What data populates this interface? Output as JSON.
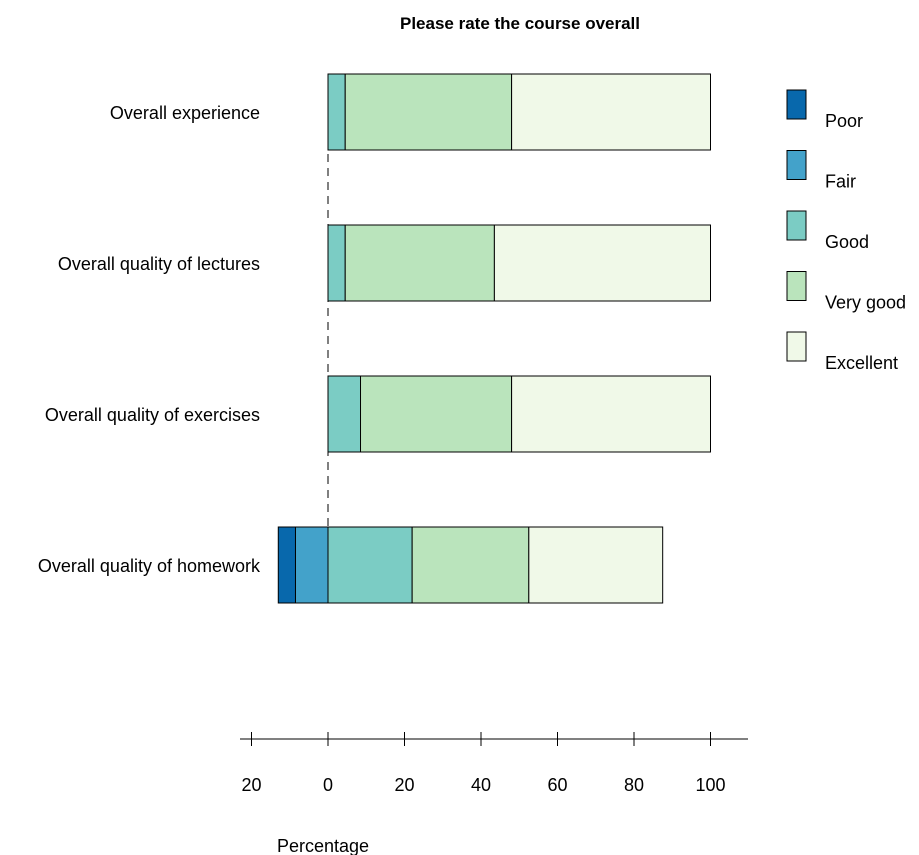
{
  "chart_data": {
    "type": "bar",
    "orientation": "horizontal",
    "stacked": "diverging",
    "title": "Please rate the course overall",
    "xlabel": "Percentage",
    "ylabel": "",
    "xlim": [
      -20,
      110
    ],
    "x_ticks": [
      -20,
      0,
      20,
      40,
      60,
      80,
      100
    ],
    "x_tick_labels": [
      "20",
      "0",
      "20",
      "40",
      "60",
      "80",
      "100"
    ],
    "categories": [
      "Overall experience",
      "Overall quality of lectures",
      "Overall quality of exercises",
      "Overall quality of homework"
    ],
    "series": [
      {
        "name": "Poor",
        "color": "#0868ac",
        "values": [
          0,
          0,
          0,
          -4.5
        ]
      },
      {
        "name": "Fair",
        "color": "#43a2ca",
        "values": [
          0,
          0,
          0,
          -8.5
        ]
      },
      {
        "name": "Good",
        "color": "#7bccc4",
        "values": [
          4.5,
          4.5,
          8.5,
          22
        ]
      },
      {
        "name": "Very good",
        "color": "#bae4bc",
        "values": [
          43.5,
          39,
          39.5,
          30.5
        ]
      },
      {
        "name": "Excellent",
        "color": "#f0f9e8",
        "values": [
          52,
          56.5,
          52,
          35
        ]
      }
    ],
    "legend_position": "right",
    "baseline_dashed_line": true
  }
}
